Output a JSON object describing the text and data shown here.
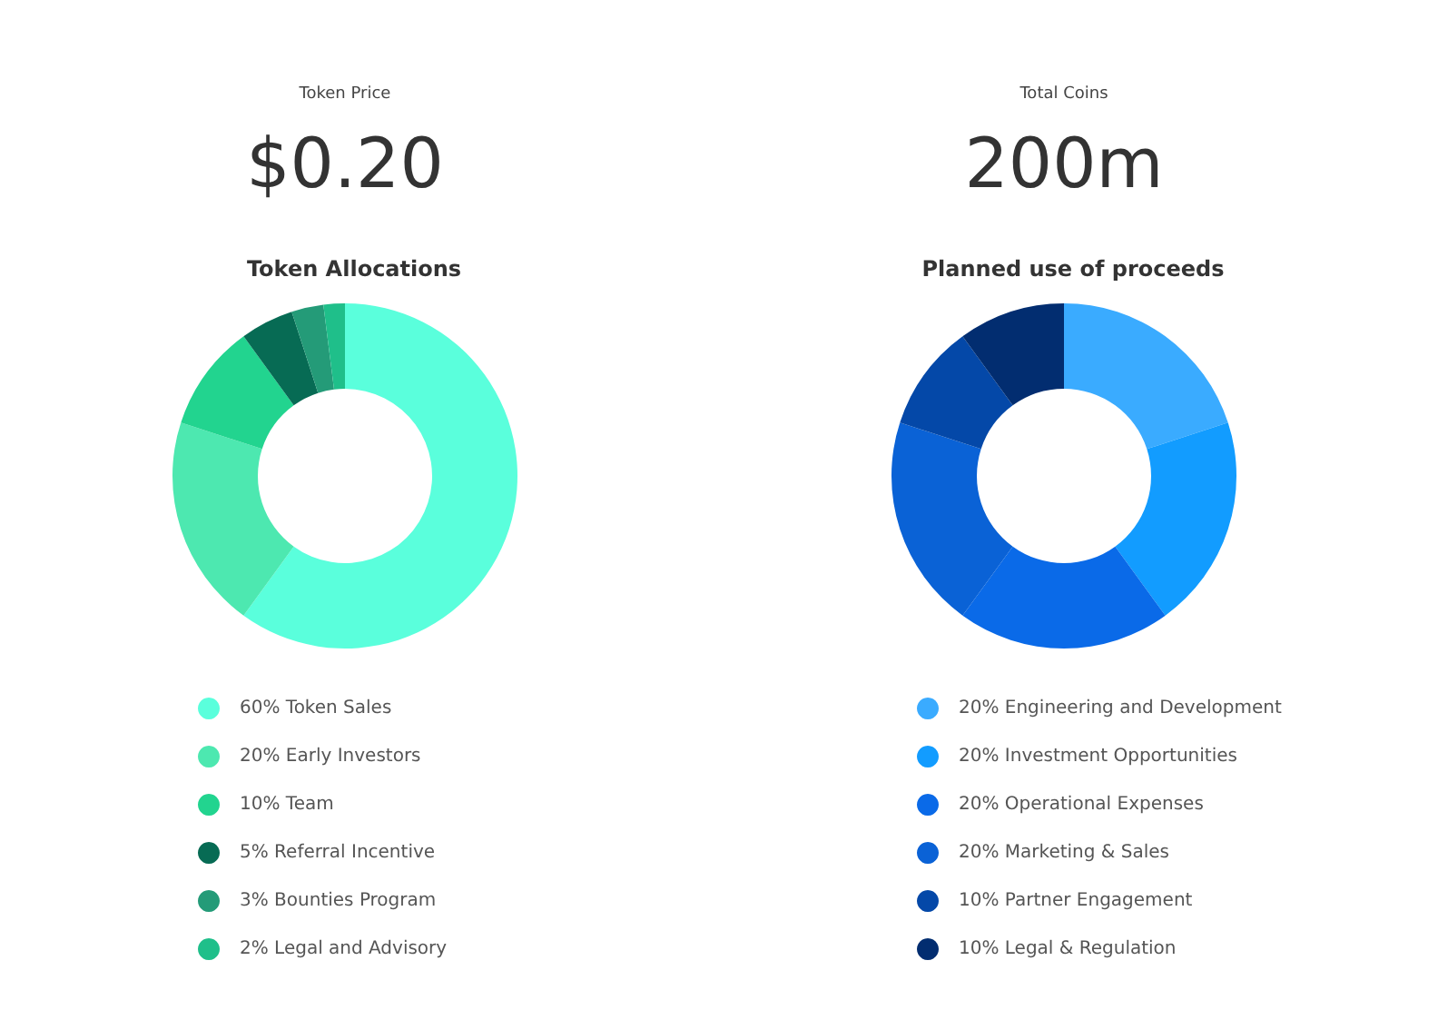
{
  "chart_data": [
    {
      "type": "donut",
      "title": "Token Allocations",
      "annotations": [
        "Token Price",
        "$0.20"
      ],
      "categories": [
        "60% Token Sales",
        "20% Early Investors",
        "10% Team",
        "5% Referral Incentive",
        "3% Bounties Program",
        "2% Legal and Advisory"
      ],
      "values": [
        60,
        20,
        10,
        5,
        3,
        2
      ],
      "colors": [
        "#5affdc",
        "#4de8b0",
        "#22d48f",
        "#076b54",
        "#249b78",
        "#1fbf8a"
      ],
      "legend": "bottom"
    },
    {
      "type": "donut",
      "title": "Planned use of proceeds",
      "annotations": [
        "Total Coins",
        "200m"
      ],
      "categories": [
        "20% Engineering and Development",
        "20% Investment Opportunities",
        "20% Operational Expenses",
        "20% Marketing & Sales",
        "10% Partner Engagement",
        "10% Legal & Regulation"
      ],
      "values": [
        20,
        20,
        20,
        20,
        10,
        10
      ],
      "colors": [
        "#3aabff",
        "#129cff",
        "#0a6ae8",
        "#0a62d6",
        "#0448a8",
        "#022d70"
      ],
      "legend": "bottom"
    }
  ]
}
